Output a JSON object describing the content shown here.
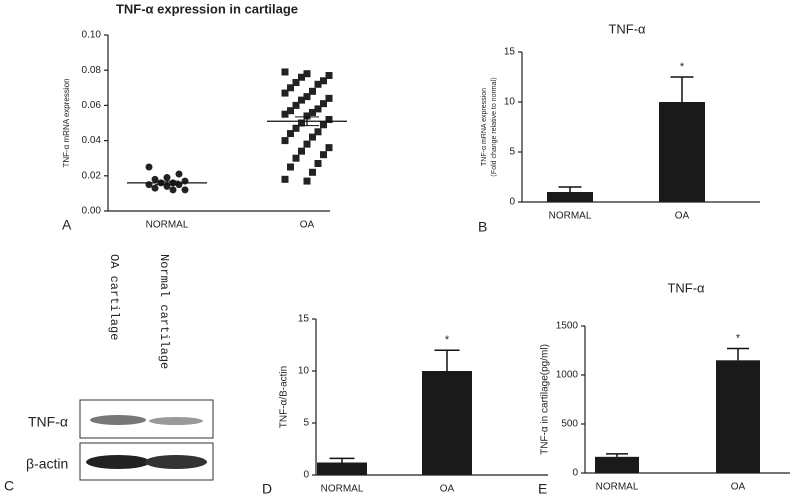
{
  "chart_data": [
    {
      "type": "scatter",
      "panel": "A",
      "title": "TNF-α expression in cartilage",
      "ylabel": "TNF-α mRNA expression",
      "categories": [
        "NORMAL",
        "OA"
      ],
      "markers": [
        "circle",
        "square"
      ],
      "color": "#222222",
      "values": [
        [
          0.025,
          0.021,
          0.019,
          0.018,
          0.017,
          0.016,
          0.016,
          0.015,
          0.015,
          0.014,
          0.013,
          0.012,
          0.012
        ],
        [
          0.079,
          0.078,
          0.077,
          0.076,
          0.074,
          0.073,
          0.072,
          0.07,
          0.068,
          0.067,
          0.065,
          0.064,
          0.063,
          0.061,
          0.06,
          0.058,
          0.057,
          0.056,
          0.055,
          0.054,
          0.052,
          0.05,
          0.049,
          0.047,
          0.045,
          0.044,
          0.042,
          0.04,
          0.038,
          0.036,
          0.034,
          0.032,
          0.03,
          0.027,
          0.025,
          0.022,
          0.018,
          0.017
        ]
      ],
      "means": [
        0.016,
        0.051
      ],
      "errors": [
        0.001,
        0.0025
      ],
      "ylim": [
        0,
        0.1
      ],
      "yticks": [
        {
          "value": 0,
          "label": "0.00"
        },
        {
          "value": 0.02,
          "label": "0.02"
        },
        {
          "value": 0.04,
          "label": "0.04"
        },
        {
          "value": 0.06,
          "label": "0.06"
        },
        {
          "value": 0.08,
          "label": "0.08"
        },
        {
          "value": 0.1,
          "label": "0.10"
        }
      ]
    },
    {
      "type": "bar",
      "panel": "B",
      "title": "TNF-α",
      "ylabel": [
        "TNF-α mRNA expression",
        "（Fold change relative to normal）"
      ],
      "categories": [
        "NORMAL",
        "OA"
      ],
      "values": [
        1,
        10
      ],
      "errors": [
        0.5,
        2.5
      ],
      "color": "#1a1a1a",
      "annotations": [
        {
          "category_index": 1,
          "text": "*"
        }
      ],
      "ylim": [
        0,
        15
      ],
      "yticks": [
        0,
        5,
        10,
        15
      ]
    },
    {
      "type": "bar",
      "panel": "D",
      "ylabel": [
        "TNF-α/B-actin"
      ],
      "categories": [
        "NORMAL",
        "OA"
      ],
      "values": [
        1.2,
        10
      ],
      "errors": [
        0.4,
        2
      ],
      "color": "#1a1a1a",
      "annotations": [
        {
          "category_index": 1,
          "text": "*"
        }
      ],
      "ylim": [
        0,
        15
      ],
      "yticks": [
        0,
        5,
        10,
        15
      ]
    },
    {
      "type": "bar",
      "panel": "E",
      "title": "TNF-α",
      "ylabel": [
        "TNF-α in cartilage(pg/ml)"
      ],
      "categories": [
        "NORMAL",
        "OA"
      ],
      "values": [
        165,
        1150
      ],
      "errors": [
        30,
        120
      ],
      "color": "#1a1a1a",
      "annotations": [
        {
          "category_index": 1,
          "text": "*"
        }
      ],
      "ylim": [
        0,
        1500
      ],
      "yticks": [
        0,
        500,
        1000,
        1500
      ]
    }
  ],
  "blot": {
    "panel": "C",
    "lanes": [
      "OA cartilage",
      "Normal cartilage"
    ],
    "rows": [
      "TNF-α",
      "β-actin"
    ]
  }
}
